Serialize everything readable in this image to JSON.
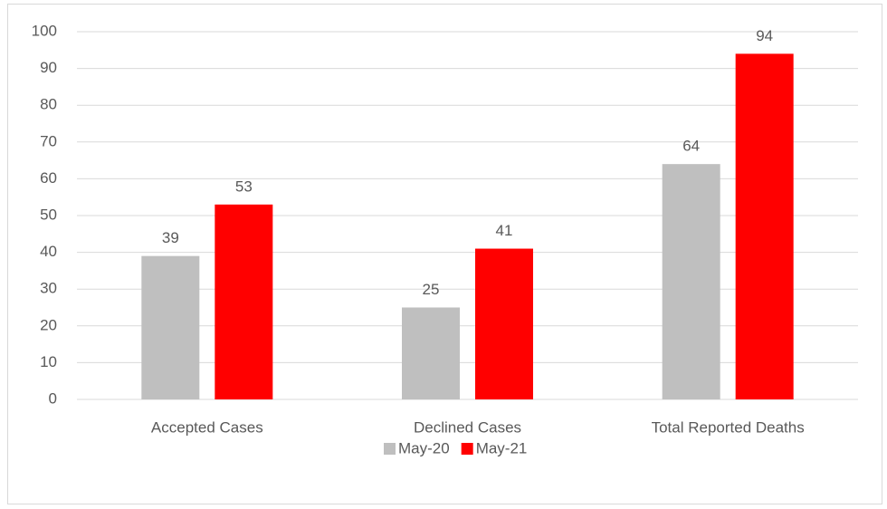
{
  "chart_data": {
    "type": "bar",
    "categories": [
      "Accepted Cases",
      "Declined Cases",
      "Total Reported Deaths"
    ],
    "series": [
      {
        "name": "May-20",
        "color": "#bfbfbf",
        "values": [
          39,
          25,
          64
        ]
      },
      {
        "name": "May-21",
        "color": "#ff0000",
        "values": [
          53,
          41,
          94
        ]
      }
    ],
    "ylim": [
      0,
      100
    ],
    "yticks": [
      0,
      10,
      20,
      30,
      40,
      50,
      60,
      70,
      80,
      90,
      100
    ],
    "grid": true,
    "legend": "bottom"
  }
}
